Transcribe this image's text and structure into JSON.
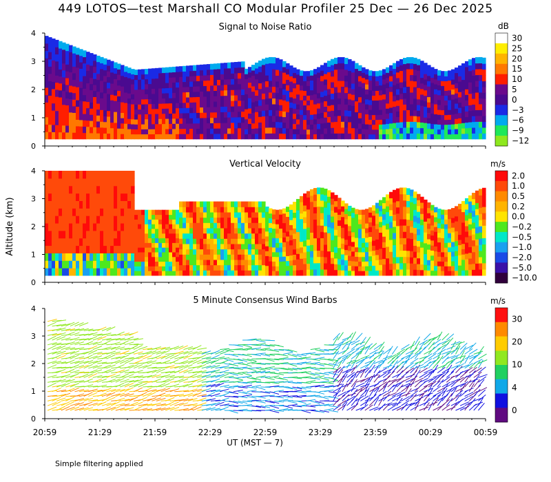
{
  "title": "449 LOTOS—test Marshall CO Modular Profiler 25 Dec — 26 Dec 2025",
  "note": "Simple filtering applied",
  "chart_data": [
    {
      "type": "heatmap",
      "title": "Signal to Noise Ratio",
      "unit": "dB",
      "ylabel": "",
      "yticks": [
        "0",
        "1",
        "2",
        "3",
        "4"
      ],
      "ylim": [
        0,
        4
      ],
      "colorbar": {
        "labels": [
          "30",
          "25",
          "20",
          "15",
          "10",
          "5",
          "0",
          "−3",
          "−6",
          "−9",
          "−12"
        ],
        "colors": [
          "#ffffff",
          "#ffee00",
          "#ffb400",
          "#ff7800",
          "#ff1e00",
          "#6a0a8c",
          "#4a0a90",
          "#1a2ae6",
          "#00aaee",
          "#1ee85a",
          "#8ee81e"
        ]
      }
    },
    {
      "type": "heatmap",
      "title": "Vertical Velocity",
      "unit": "m/s",
      "ylabel": "Altitude (km)",
      "yticks": [
        "0",
        "1",
        "2",
        "3",
        "4"
      ],
      "ylim": [
        0,
        4
      ],
      "colorbar": {
        "labels": [
          "2.0",
          "1.0",
          "0.5",
          "0.2",
          "0.0",
          "−0.2",
          "−0.5",
          "−1.0",
          "−2.0",
          "−5.0",
          "−10.0"
        ],
        "colors": [
          "#ff0a0a",
          "#ff4a0a",
          "#ff8a00",
          "#ffb400",
          "#ffe400",
          "#4ee81e",
          "#00e8c8",
          "#1aa0f0",
          "#1a4ae6",
          "#3a10a8",
          "#30003c"
        ]
      }
    },
    {
      "type": "scatter",
      "title": "5 Minute Consensus Wind Barbs",
      "unit": "m/s",
      "ylabel": "",
      "yticks": [
        "0",
        "1",
        "2",
        "3",
        "4"
      ],
      "ylim": [
        0,
        4
      ],
      "colorbar": {
        "labels": [
          "30",
          "20",
          "10",
          "4",
          "0"
        ],
        "colors": [
          "#ff1010",
          "#ff8a00",
          "#ffcc00",
          "#90e820",
          "#20d060",
          "#10a8e8",
          "#1010e0",
          "#600a80"
        ]
      }
    }
  ],
  "xaxis": {
    "ticks": [
      "20:59",
      "21:29",
      "21:59",
      "22:29",
      "22:59",
      "23:29",
      "23:59",
      "00:29",
      "00:59"
    ],
    "label": "UT   (MST — 7)"
  }
}
